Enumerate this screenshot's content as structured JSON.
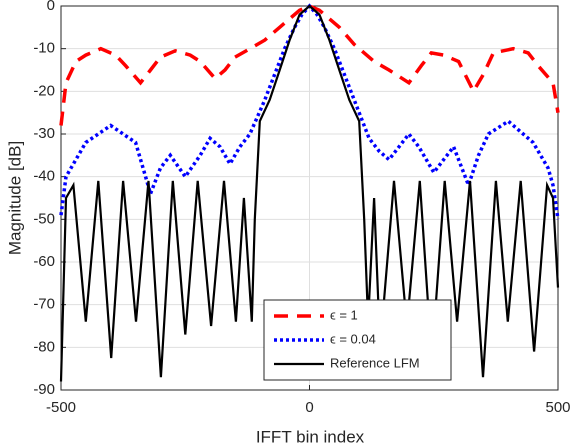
{
  "chart_data": {
    "type": "line",
    "xlabel": "IFFT bin index",
    "ylabel": "Magnitude [dB]",
    "xlim": [
      -500,
      500
    ],
    "xticks": [
      -500,
      0,
      500
    ],
    "ylim": [
      -90,
      0
    ],
    "yticks": [
      0,
      -10,
      -20,
      -30,
      -40,
      -50,
      -60,
      -70,
      -80,
      -90
    ],
    "grid": true,
    "legend": "lower right",
    "series": [
      {
        "name": "ϵ = 1",
        "color": "#ff0000",
        "linestyle": "dashed",
        "x": [
          -500,
          -490,
          -470,
          -450,
          -420,
          -390,
          -370,
          -340,
          -320,
          -300,
          -270,
          -240,
          -220,
          -190,
          -170,
          -150,
          -120,
          -90,
          -60,
          -40,
          -20,
          0,
          20,
          40,
          60,
          90,
          130,
          160,
          200,
          225,
          245,
          270,
          300,
          330,
          350,
          370,
          410,
          440,
          460,
          490,
          500
        ],
        "values": [
          -28,
          -18,
          -13,
          -11.5,
          -10,
          -11.5,
          -14,
          -18,
          -15,
          -12,
          -10.5,
          -11.5,
          -13,
          -17,
          -15,
          -12,
          -10,
          -8,
          -5,
          -3,
          -1,
          0,
          -1,
          -3,
          -5,
          -9,
          -13,
          -15,
          -18,
          -14,
          -11,
          -11.5,
          -13,
          -20,
          -16,
          -11,
          -10,
          -11,
          -14,
          -18,
          -25
        ]
      },
      {
        "name": "ϵ = 0.04",
        "color": "#0000ff",
        "linestyle": "dotted",
        "x": [
          -500,
          -490,
          -470,
          -450,
          -400,
          -350,
          -320,
          -300,
          -280,
          -250,
          -220,
          -200,
          -180,
          -160,
          -140,
          -120,
          -90,
          -70,
          -50,
          -30,
          -15,
          0,
          15,
          30,
          50,
          70,
          90,
          120,
          140,
          160,
          180,
          200,
          220,
          250,
          270,
          290,
          320,
          340,
          360,
          400,
          450,
          480,
          490,
          500
        ],
        "values": [
          -49,
          -40,
          -36,
          -32,
          -28,
          -32,
          -44,
          -38,
          -35,
          -40,
          -35,
          -31,
          -33,
          -37,
          -33,
          -30,
          -22,
          -16,
          -10,
          -5,
          -2,
          0,
          -2,
          -5,
          -10,
          -16,
          -22,
          -31,
          -34,
          -36,
          -33,
          -30,
          -33,
          -39,
          -36,
          -33,
          -42,
          -35,
          -30,
          -27,
          -32,
          -38,
          -42,
          -50
        ]
      },
      {
        "name": "Reference LFM",
        "color": "#000000",
        "linestyle": "solid",
        "x": [
          -500,
          -490,
          -475,
          -450,
          -425,
          -399,
          -375,
          -349,
          -324,
          -299,
          -275,
          -250,
          -225,
          -198,
          -172,
          -148,
          -132,
          -116,
          -110,
          -100,
          -80,
          -60,
          -40,
          -20,
          0,
          20,
          40,
          60,
          80,
          100,
          110,
          118,
          130,
          142,
          170,
          196,
          222,
          246,
          272,
          297,
          323,
          349,
          375,
          399,
          425,
          452,
          478,
          490,
          500
        ],
        "values": [
          -88,
          -45,
          -42,
          -74,
          -41,
          -82.5,
          -41,
          -74,
          -41,
          -87,
          -41,
          -77,
          -41,
          -75,
          -41,
          -74,
          -45,
          -74,
          -50,
          -27,
          -22,
          -15,
          -8,
          -2,
          0,
          -2,
          -8,
          -15,
          -22,
          -27,
          -50,
          -74,
          -45,
          -80,
          -41,
          -75,
          -41,
          -83,
          -41,
          -74,
          -41,
          -87,
          -41,
          -74,
          -41,
          -81,
          -42,
          -45,
          -66
        ]
      }
    ]
  }
}
